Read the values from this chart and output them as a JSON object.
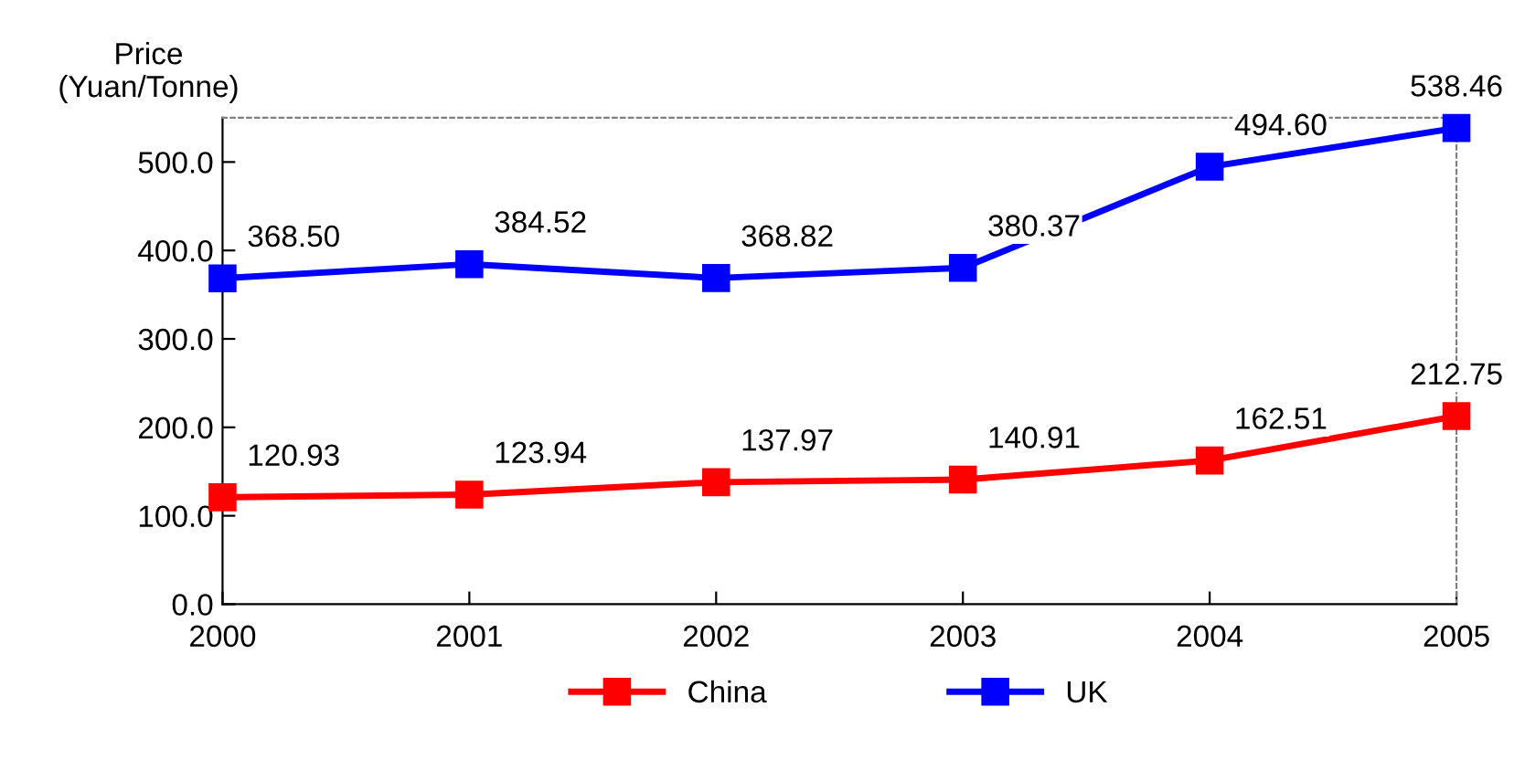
{
  "chart_data": {
    "type": "line",
    "ylabel": "Price\n(Yuan/Tonne)",
    "x": [
      2000,
      2001,
      2002,
      2003,
      2004,
      2005
    ],
    "series": [
      {
        "name": "China",
        "color": "#ff0000",
        "values": [
          120.93,
          123.94,
          137.97,
          140.91,
          162.51,
          212.75
        ],
        "value_labels": [
          "120.93",
          "123.94",
          "137.97",
          "140.91",
          "162.51",
          "212.75"
        ]
      },
      {
        "name": "UK",
        "color": "#0000ff",
        "values": [
          368.5,
          384.52,
          368.82,
          380.37,
          494.6,
          538.46
        ],
        "value_labels": [
          "368.50",
          "384.52",
          "368.82",
          "380.37",
          "494.60",
          "538.46"
        ]
      }
    ],
    "xlim": [
      2000,
      2005
    ],
    "xticks": [
      2000,
      2001,
      2002,
      2003,
      2004,
      2005
    ],
    "ylim": [
      0,
      550
    ],
    "yticks": [
      {
        "value": 0,
        "label": "0.0"
      },
      {
        "value": 100,
        "label": "100.0"
      },
      {
        "value": 200,
        "label": "200.0"
      },
      {
        "value": 300,
        "label": "300.0"
      },
      {
        "value": 400,
        "label": "400.0"
      },
      {
        "value": 500,
        "label": "500.0"
      }
    ],
    "marker": "square",
    "line_style": "solid",
    "legend": "bottom",
    "grid": false
  }
}
